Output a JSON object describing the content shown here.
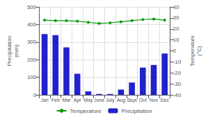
{
  "chart_data": {
    "type": "bar",
    "categories": [
      "Jan",
      "Feb",
      "Mar",
      "Apr",
      "May",
      "June",
      "July",
      "Aug",
      "Sept",
      "Oct",
      "Nov",
      "Dec"
    ],
    "ylabel": "Precipitation\n(mm)",
    "y2label": "Temperature\n(°C)",
    "series": [
      {
        "name": "Temperature",
        "type": "line",
        "axis": "y2",
        "color": "#009900",
        "marker": "circle",
        "values": [
          28,
          27.5,
          27.5,
          27,
          26,
          25,
          25.5,
          26.5,
          27.5,
          28.5,
          29,
          28
        ]
      },
      {
        "name": "Precipitation",
        "type": "bar",
        "color": "#2222cc",
        "values": [
          345,
          340,
          270,
          120,
          20,
          5,
          5,
          30,
          70,
          155,
          170,
          235
        ]
      }
    ],
    "ylim": [
      0,
      500
    ],
    "yticks": [
      0,
      100,
      200,
      300,
      400,
      500
    ],
    "y2lim": [
      -40,
      40
    ],
    "y2ticks": [
      -40,
      -30,
      -20,
      -10,
      0,
      10,
      20,
      30,
      40
    ],
    "grid": true,
    "legend": "bottom"
  }
}
